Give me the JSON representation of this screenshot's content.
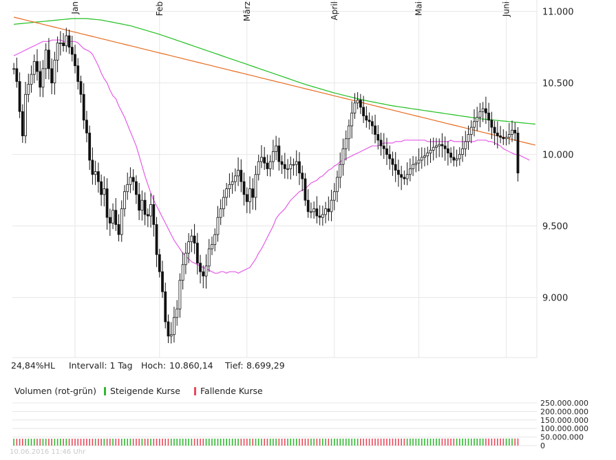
{
  "info": {
    "range_pct": "24,84%HL",
    "interval": "Intervall: 1 Tag",
    "high_label": "Hoch:",
    "high_value": "10.860,14",
    "low_label": "Tief:",
    "low_value": "8.699,29"
  },
  "legend": {
    "title": "Volumen (rot-grün)",
    "rising": "Steigende Kurse",
    "falling": "Fallende Kurse"
  },
  "footer": {
    "timestamp": "10.06.2016 11:46 Uhr"
  },
  "colors": {
    "up_volume": "#2eb82e",
    "down_volume": "#e8485a",
    "sma200": "#1fbf1f",
    "sma100": "#e86a1c",
    "sma38": "#e55be8",
    "candle": "#111111",
    "grid": "#e6e6e6"
  },
  "chart_data": {
    "type": "candlestick",
    "title": "",
    "y_ticks": [
      "9.000",
      "9.500",
      "10.000",
      "10.500",
      "11.000"
    ],
    "y_tick_values": [
      9000,
      9500,
      10000,
      10500,
      11000
    ],
    "ylim": [
      8580,
      11080
    ],
    "x_ticks": [
      {
        "label": "Jan",
        "index": 21
      },
      {
        "label": "Feb",
        "index": 50
      },
      {
        "label": "März",
        "index": 80
      },
      {
        "label": "April",
        "index": 110
      },
      {
        "label": "Mai",
        "index": 139
      },
      {
        "label": "Juni",
        "index": 169
      }
    ],
    "n_days": 180,
    "closes": [
      10600,
      10510,
      10300,
      10130,
      10420,
      10490,
      10560,
      10650,
      10580,
      10470,
      10600,
      10730,
      10600,
      10500,
      10660,
      10780,
      10780,
      10760,
      10830,
      10750,
      10700,
      10620,
      10510,
      10420,
      10240,
      10150,
      9960,
      9860,
      9880,
      9810,
      9720,
      9760,
      9560,
      9520,
      9610,
      9510,
      9440,
      9620,
      9740,
      9790,
      9840,
      9810,
      9720,
      9610,
      9680,
      9580,
      9570,
      9650,
      9510,
      9300,
      9180,
      9040,
      8830,
      8730,
      8740,
      8860,
      8920,
      9120,
      9230,
      9310,
      9390,
      9430,
      9380,
      9240,
      9180,
      9150,
      9220,
      9340,
      9370,
      9440,
      9560,
      9620,
      9700,
      9760,
      9790,
      9810,
      9850,
      9890,
      9810,
      9720,
      9670,
      9760,
      9700,
      9860,
      9950,
      9980,
      9940,
      9900,
      9950,
      10020,
      10060,
      9950,
      9930,
      9900,
      9900,
      9930,
      9930,
      9950,
      9870,
      9830,
      9680,
      9600,
      9600,
      9620,
      9570,
      9560,
      9580,
      9620,
      9600,
      9680,
      9740,
      9840,
      9930,
      10040,
      10110,
      10200,
      10290,
      10360,
      10380,
      10330,
      10270,
      10240,
      10230,
      10200,
      10140,
      10100,
      10060,
      10040,
      10000,
      9970,
      9930,
      9890,
      9860,
      9840,
      9830,
      9860,
      9900,
      9930,
      9940,
      9960,
      9980,
      9990,
      10010,
      10030,
      10050,
      10060,
      10070,
      10060,
      10040,
      10010,
      9980,
      9960,
      9970,
      10000,
      10040,
      10090,
      10140,
      10190,
      10230,
      10260,
      10300,
      10320,
      10290,
      10240,
      10190,
      10150,
      10130,
      10120,
      10110,
      10120,
      10140,
      10170,
      10150,
      9870
    ],
    "sma38": [
      10690,
      10700,
      10710,
      10720,
      10730,
      10740,
      10750,
      10760,
      10770,
      10780,
      10790,
      10790,
      10790,
      10800,
      10800,
      10800,
      10800,
      10790,
      10790,
      10790,
      10790,
      10790,
      10780,
      10760,
      10740,
      10730,
      10720,
      10700,
      10660,
      10620,
      10570,
      10530,
      10500,
      10450,
      10410,
      10390,
      10340,
      10300,
      10260,
      10210,
      10160,
      10110,
      10060,
      9990,
      9920,
      9850,
      9790,
      9730,
      9680,
      9640,
      9600,
      9560,
      9520,
      9480,
      9440,
      9400,
      9370,
      9340,
      9310,
      9290,
      9270,
      9250,
      9240,
      9230,
      9220,
      9210,
      9200,
      9190,
      9180,
      9170,
      9170,
      9180,
      9180,
      9170,
      9180,
      9180,
      9180,
      9170,
      9180,
      9190,
      9200,
      9210,
      9240,
      9270,
      9310,
      9340,
      9380,
      9420,
      9460,
      9500,
      9550,
      9580,
      9600,
      9620,
      9650,
      9680,
      9700,
      9720,
      9740,
      9750,
      9760,
      9780,
      9800,
      9810,
      9820,
      9840,
      9850,
      9870,
      9890,
      9900,
      9920,
      9930,
      9950,
      9960,
      9970,
      9980,
      9990,
      10000,
      10010,
      10020,
      10030,
      10040,
      10050,
      10060,
      10060,
      10060,
      10070,
      10080,
      10080,
      10080,
      10080,
      10090,
      10090,
      10090,
      10100,
      10100,
      10100,
      10100,
      10100,
      10100,
      10100,
      10100,
      10090,
      10090,
      10090,
      10090,
      10090,
      10090,
      10090,
      10090,
      10100,
      10090,
      10090,
      10090,
      10090,
      10090,
      10090,
      10090,
      10090,
      10100,
      10100,
      10100,
      10100,
      10090,
      10090,
      10080,
      10070,
      10060,
      10040,
      10030,
      10020,
      10010,
      10000,
      10000,
      9990,
      9980,
      9970,
      9960
    ],
    "sma100": [
      10960,
      10955,
      10950,
      10945,
      10940,
      10935,
      10930,
      10925,
      10920,
      10915,
      10910,
      10905,
      10900,
      10895,
      10890,
      10885,
      10880,
      10875,
      10870,
      10865,
      10860,
      10855,
      10850,
      10845,
      10840,
      10835,
      10830,
      10825,
      10820,
      10815,
      10810,
      10805,
      10800,
      10795,
      10790,
      10785,
      10780,
      10775,
      10770,
      10765,
      10760,
      10755,
      10750,
      10745,
      10740,
      10735,
      10730,
      10725,
      10720,
      10715,
      10710,
      10705,
      10700,
      10695,
      10690,
      10685,
      10680,
      10675,
      10670,
      10665,
      10660,
      10655,
      10650,
      10645,
      10640,
      10635,
      10630,
      10625,
      10620,
      10615,
      10610,
      10605,
      10600,
      10595,
      10590,
      10585,
      10580,
      10575,
      10570,
      10565,
      10560,
      10555,
      10550,
      10545,
      10540,
      10535,
      10530,
      10525,
      10520,
      10515,
      10510,
      10505,
      10500,
      10495,
      10490,
      10485,
      10480,
      10475,
      10470,
      10465,
      10460,
      10455,
      10450,
      10445,
      10440,
      10435,
      10430,
      10425,
      10420,
      10415,
      10410,
      10405,
      10400,
      10395,
      10390,
      10385,
      10380,
      10375,
      10370,
      10365,
      10360,
      10355,
      10350,
      10345,
      10340,
      10335,
      10330,
      10325,
      10320,
      10315,
      10310,
      10305,
      10300,
      10295,
      10290,
      10285,
      10280,
      10275,
      10270,
      10265,
      10260,
      10255,
      10250,
      10245,
      10240,
      10235,
      10230,
      10225,
      10220,
      10215,
      10210,
      10205,
      10200,
      10195,
      10190,
      10185,
      10180,
      10175,
      10170,
      10165,
      10160,
      10155,
      10150,
      10145,
      10140,
      10135,
      10130,
      10125,
      10120,
      10115,
      10110,
      10105,
      10100,
      10095,
      10090,
      10085,
      10080,
      10075,
      10070,
      10065
    ],
    "sma200": [
      10910,
      10912,
      10914,
      10916,
      10918,
      10920,
      10922,
      10924,
      10926,
      10928,
      10930,
      10932,
      10934,
      10936,
      10938,
      10940,
      10942,
      10944,
      10946,
      10948,
      10950,
      10950,
      10950,
      10950,
      10950,
      10950,
      10948,
      10946,
      10944,
      10942,
      10940,
      10936,
      10932,
      10928,
      10924,
      10920,
      10916,
      10912,
      10908,
      10904,
      10900,
      10894,
      10888,
      10882,
      10876,
      10870,
      10864,
      10858,
      10852,
      10846,
      10840,
      10833,
      10826,
      10819,
      10812,
      10805,
      10798,
      10791,
      10784,
      10777,
      10770,
      10763,
      10756,
      10749,
      10742,
      10735,
      10728,
      10721,
      10714,
      10707,
      10700,
      10693,
      10686,
      10679,
      10672,
      10665,
      10658,
      10651,
      10644,
      10637,
      10630,
      10623,
      10616,
      10609,
      10602,
      10595,
      10588,
      10581,
      10574,
      10567,
      10560,
      10553,
      10546,
      10539,
      10532,
      10525,
      10518,
      10511,
      10504,
      10497,
      10490,
      10484,
      10478,
      10472,
      10466,
      10460,
      10454,
      10448,
      10442,
      10436,
      10430,
      10425,
      10420,
      10415,
      10410,
      10405,
      10400,
      10395,
      10390,
      10385,
      10380,
      10376,
      10372,
      10368,
      10364,
      10360,
      10356,
      10352,
      10348,
      10344,
      10340,
      10337,
      10334,
      10331,
      10328,
      10325,
      10322,
      10319,
      10316,
      10313,
      10310,
      10307,
      10304,
      10301,
      10298,
      10295,
      10292,
      10289,
      10286,
      10283,
      10280,
      10277,
      10274,
      10271,
      10268,
      10265,
      10262,
      10259,
      10256,
      10253,
      10250,
      10248,
      10246,
      10244,
      10242,
      10240,
      10238,
      10236,
      10234,
      10232,
      10230,
      10228,
      10226,
      10224,
      10222,
      10220,
      10218,
      10216,
      10214,
      10212
    ],
    "volume_ticks": [
      "0",
      "50.000.000",
      "100.000.000",
      "150.000.000",
      "200.000.000",
      "250.000.000"
    ],
    "volume_tick_values": [
      0,
      50000000,
      100000000,
      150000000,
      200000000,
      250000000
    ],
    "volume_ylim": [
      0,
      250000000
    ]
  }
}
